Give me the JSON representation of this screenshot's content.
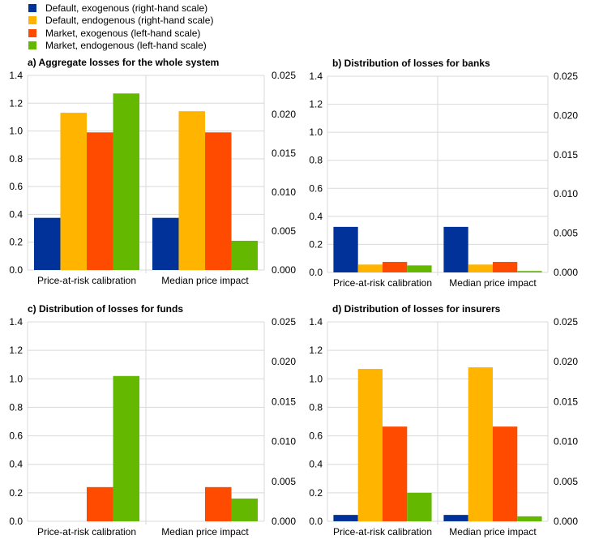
{
  "chart_data": [
    {
      "type": "bar",
      "title": "a) Aggregate losses for the whole system",
      "categories": [
        "Price-at-risk calibration",
        "Median price impact"
      ],
      "ylim_left": [
        0,
        1.4
      ],
      "ylim_right": [
        0,
        0.025
      ],
      "left_ticks": [
        "0.0",
        "0.2",
        "0.4",
        "0.6",
        "0.8",
        "1.0",
        "1.2",
        "1.4"
      ],
      "right_ticks": [
        "0.000",
        "0.005",
        "0.010",
        "0.015",
        "0.020",
        "0.025"
      ],
      "series": [
        {
          "name": "Default, exogenous (right-hand scale)",
          "axis": "right",
          "values": [
            0.0067,
            0.0067
          ]
        },
        {
          "name": "Default, endogenous (right-hand scale)",
          "axis": "right",
          "values": [
            0.0202,
            0.0204
          ]
        },
        {
          "name": "Market, exogenous (left-hand scale)",
          "axis": "left",
          "values": [
            0.99,
            0.99
          ]
        },
        {
          "name": "Market, endogenous (left-hand scale)",
          "axis": "left",
          "values": [
            1.27,
            0.21
          ]
        }
      ]
    },
    {
      "type": "bar",
      "title": "b) Distribution of losses for banks",
      "categories": [
        "Price-at-risk calibration",
        "Median price impact"
      ],
      "ylim_left": [
        0,
        1.4
      ],
      "ylim_right": [
        0,
        0.025
      ],
      "left_ticks": [
        "0.0",
        "0.2",
        "0.4",
        "0.6",
        "0.8",
        "1.0",
        "1.2",
        "1.4"
      ],
      "right_ticks": [
        "0.000",
        "0.005",
        "0.010",
        "0.015",
        "0.020",
        "0.025"
      ],
      "series": [
        {
          "name": "Default, exogenous (right-hand scale)",
          "axis": "right",
          "values": [
            0.0058,
            0.0058
          ]
        },
        {
          "name": "Default, endogenous (right-hand scale)",
          "axis": "right",
          "values": [
            0.001,
            0.001
          ]
        },
        {
          "name": "Market, exogenous (left-hand scale)",
          "axis": "left",
          "values": [
            0.075,
            0.075
          ]
        },
        {
          "name": "Market, endogenous (left-hand scale)",
          "axis": "left",
          "values": [
            0.05,
            0.01
          ]
        }
      ]
    },
    {
      "type": "bar",
      "title": "c) Distribution of losses for funds",
      "categories": [
        "Price-at-risk calibration",
        "Median price impact"
      ],
      "ylim_left": [
        0,
        1.4
      ],
      "ylim_right": [
        0,
        0.025
      ],
      "left_ticks": [
        "0.0",
        "0.2",
        "0.4",
        "0.6",
        "0.8",
        "1.0",
        "1.2",
        "1.4"
      ],
      "right_ticks": [
        "0.000",
        "0.005",
        "0.010",
        "0.015",
        "0.020",
        "0.025"
      ],
      "series": [
        {
          "name": "Default, exogenous (right-hand scale)",
          "axis": "right",
          "values": [
            0,
            0
          ]
        },
        {
          "name": "Default, endogenous (right-hand scale)",
          "axis": "right",
          "values": [
            0,
            0
          ]
        },
        {
          "name": "Market, exogenous (left-hand scale)",
          "axis": "left",
          "values": [
            0.24,
            0.24
          ]
        },
        {
          "name": "Market, endogenous (left-hand scale)",
          "axis": "left",
          "values": [
            1.02,
            0.16
          ]
        }
      ]
    },
    {
      "type": "bar",
      "title": "d) Distribution of losses for insurers",
      "categories": [
        "Price-at-risk calibration",
        "Median price impact"
      ],
      "ylim_left": [
        0,
        1.4
      ],
      "ylim_right": [
        0,
        0.025
      ],
      "left_ticks": [
        "0.0",
        "0.2",
        "0.4",
        "0.6",
        "0.8",
        "1.0",
        "1.2",
        "1.4"
      ],
      "right_ticks": [
        "0.000",
        "0.005",
        "0.010",
        "0.015",
        "0.020",
        "0.025"
      ],
      "series": [
        {
          "name": "Default, exogenous (right-hand scale)",
          "axis": "right",
          "values": [
            0.0008,
            0.0008
          ]
        },
        {
          "name": "Default, endogenous (right-hand scale)",
          "axis": "right",
          "values": [
            0.0191,
            0.0193
          ]
        },
        {
          "name": "Market, exogenous (left-hand scale)",
          "axis": "left",
          "values": [
            0.665,
            0.665
          ]
        },
        {
          "name": "Market, endogenous (left-hand scale)",
          "axis": "left",
          "values": [
            0.2,
            0.035
          ]
        }
      ]
    }
  ],
  "legend": [
    {
      "label": "Default, exogenous (right-hand scale)",
      "color": "#003299"
    },
    {
      "label": "Default, endogenous (right-hand scale)",
      "color": "#FFB400"
    },
    {
      "label": "Market, exogenous (left-hand scale)",
      "color": "#FF4B00"
    },
    {
      "label": "Market, endogenous (left-hand scale)",
      "color": "#65B800"
    }
  ]
}
